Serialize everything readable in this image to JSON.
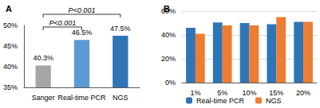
{
  "chart_data": [
    {
      "type": "bar",
      "title": "A",
      "categories": [
        "Sanger",
        "Real-time PCR",
        "NGS"
      ],
      "values": [
        40.3,
        46.5,
        47.5
      ],
      "value_labels": [
        "40.3%",
        "46.5%",
        "47.5%"
      ],
      "data_labels": true,
      "colors": [
        "#a6a6a6",
        "#5b9bd5",
        "#2e75b6"
      ],
      "ylim": [
        35,
        50
      ],
      "yticks": [
        {
          "value": 35,
          "label": "35%"
        },
        {
          "value": 40,
          "label": "40%"
        },
        {
          "value": 45,
          "label": "45%"
        },
        {
          "value": 50,
          "label": "50%"
        }
      ],
      "grid": false,
      "annotations": [
        {
          "text": "P<0.001",
          "from": "Sanger",
          "to": "NGS"
        },
        {
          "text": "P<0.001",
          "from": "Sanger",
          "to": "Real-time PCR"
        }
      ]
    },
    {
      "type": "bar",
      "title": "B",
      "categories": [
        "1%",
        "5%",
        "10%",
        "15%",
        "20%"
      ],
      "series": [
        {
          "name": "Real-time PCR",
          "color": "#2e75b6",
          "values": [
            46,
            50.5,
            50,
            49,
            51
          ]
        },
        {
          "name": "NGS",
          "color": "#ed7d31",
          "values": [
            41,
            48,
            48,
            55,
            51
          ]
        }
      ],
      "ylim": [
        0,
        60
      ],
      "yticks": [
        {
          "value": 0,
          "label": "0%"
        },
        {
          "value": 20,
          "label": "20%"
        },
        {
          "value": 40,
          "label": "40%"
        },
        {
          "value": 60,
          "label": "60%"
        }
      ],
      "grid": true,
      "legend": "bottom"
    }
  ]
}
